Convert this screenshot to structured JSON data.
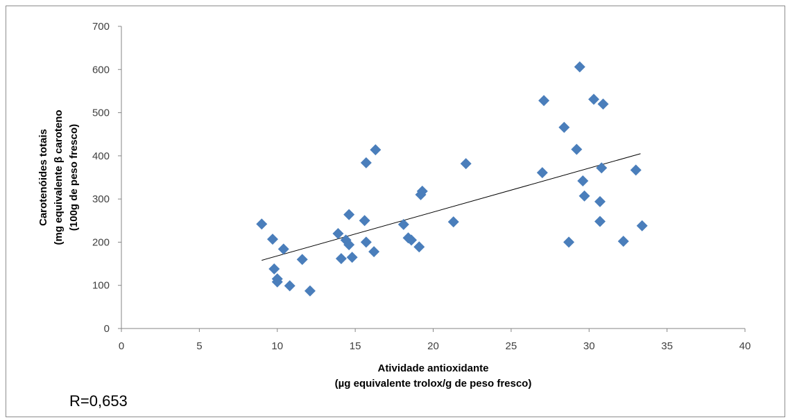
{
  "chart_data": {
    "type": "scatter",
    "xlabel": [
      "Atividade antioxidante",
      "(µg equivalente trolox/g de peso fresco)"
    ],
    "ylabel": [
      "Carotenóides totais",
      "(mg equivalente β caroteno",
      "(100g de peso fresco)"
    ],
    "xlim": [
      0,
      40
    ],
    "ylim": [
      0,
      700
    ],
    "xticks": [
      0,
      5,
      10,
      15,
      20,
      25,
      30,
      35,
      40
    ],
    "yticks": [
      0,
      100,
      200,
      300,
      400,
      500,
      600,
      700
    ],
    "grid": false,
    "marker": "diamond",
    "marker_color": "#4a7ebb",
    "trendline": {
      "x": [
        9,
        33.3
      ],
      "y": [
        158,
        405
      ],
      "color": "#000000"
    },
    "points": [
      {
        "x": 9.0,
        "y": 242
      },
      {
        "x": 9.7,
        "y": 207
      },
      {
        "x": 9.8,
        "y": 138
      },
      {
        "x": 10.0,
        "y": 115
      },
      {
        "x": 10.0,
        "y": 108
      },
      {
        "x": 10.4,
        "y": 184
      },
      {
        "x": 10.8,
        "y": 99
      },
      {
        "x": 11.6,
        "y": 160
      },
      {
        "x": 12.1,
        "y": 87
      },
      {
        "x": 13.9,
        "y": 220
      },
      {
        "x": 14.1,
        "y": 162
      },
      {
        "x": 14.4,
        "y": 205
      },
      {
        "x": 14.6,
        "y": 264
      },
      {
        "x": 14.6,
        "y": 194
      },
      {
        "x": 14.8,
        "y": 165
      },
      {
        "x": 15.6,
        "y": 250
      },
      {
        "x": 15.7,
        "y": 384
      },
      {
        "x": 15.7,
        "y": 200
      },
      {
        "x": 16.2,
        "y": 178
      },
      {
        "x": 16.3,
        "y": 414
      },
      {
        "x": 18.1,
        "y": 241
      },
      {
        "x": 18.4,
        "y": 210
      },
      {
        "x": 18.6,
        "y": 205
      },
      {
        "x": 19.1,
        "y": 189
      },
      {
        "x": 19.2,
        "y": 310
      },
      {
        "x": 19.3,
        "y": 318
      },
      {
        "x": 21.3,
        "y": 247
      },
      {
        "x": 22.1,
        "y": 382
      },
      {
        "x": 27.0,
        "y": 361
      },
      {
        "x": 27.1,
        "y": 528
      },
      {
        "x": 28.4,
        "y": 466
      },
      {
        "x": 28.7,
        "y": 200
      },
      {
        "x": 29.2,
        "y": 415
      },
      {
        "x": 29.4,
        "y": 606
      },
      {
        "x": 29.6,
        "y": 342
      },
      {
        "x": 29.7,
        "y": 307
      },
      {
        "x": 30.3,
        "y": 531
      },
      {
        "x": 30.7,
        "y": 294
      },
      {
        "x": 30.7,
        "y": 248
      },
      {
        "x": 30.8,
        "y": 372
      },
      {
        "x": 30.9,
        "y": 520
      },
      {
        "x": 32.2,
        "y": 202
      },
      {
        "x": 33.0,
        "y": 367
      },
      {
        "x": 33.4,
        "y": 238
      }
    ]
  },
  "annotation": {
    "text": "R=0,653"
  }
}
